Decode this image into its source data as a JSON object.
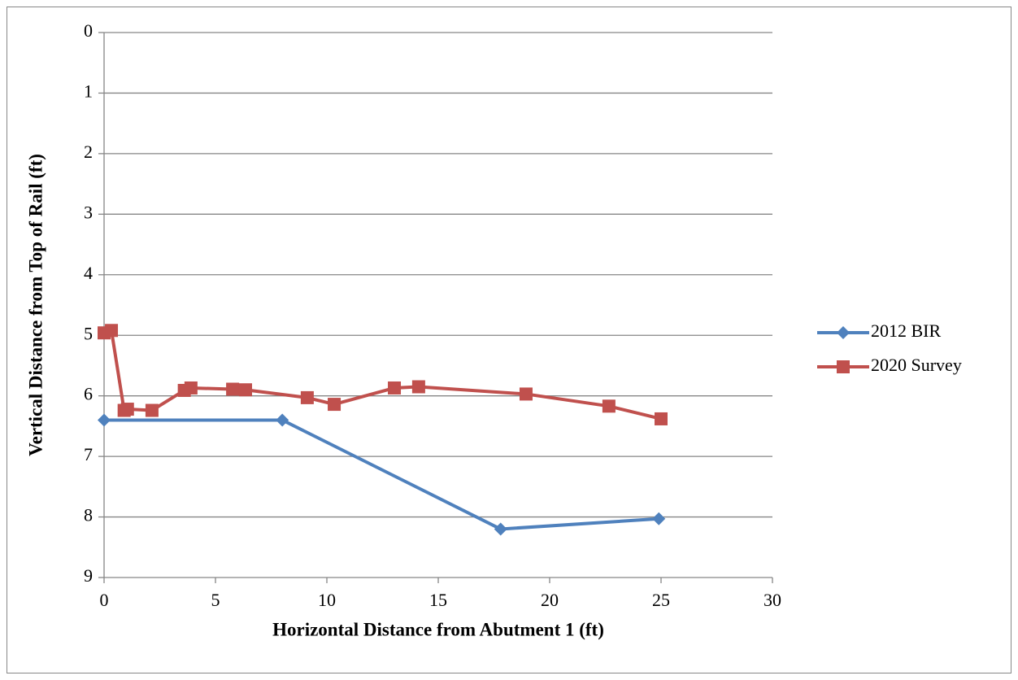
{
  "chart_data": {
    "type": "line",
    "x_label": "Horizontal Distance from Abutment 1 (ft)",
    "y_label": "Vertical Distance from Top of Rail (ft)",
    "xlim": [
      0,
      30
    ],
    "xticks": [
      0,
      5,
      10,
      15,
      20,
      25,
      30
    ],
    "ylim": [
      0,
      9
    ],
    "yticks": [
      0,
      1,
      2,
      3,
      4,
      5,
      6,
      7,
      8,
      9
    ],
    "y_reversed": true,
    "grid": true,
    "legend": "right",
    "series": [
      {
        "name": "2012 BIR",
        "color": "#4f81bd",
        "marker": "diamond",
        "x": [
          0,
          8,
          17.8,
          24.9
        ],
        "values": [
          6.4,
          6.4,
          8.2,
          8.03
        ]
      },
      {
        "name": "2020 Survey",
        "color": "#c0504d",
        "marker": "square",
        "x": [
          0,
          0.33,
          0.9,
          1.05,
          2.15,
          3.6,
          3.9,
          5.77,
          6.35,
          9.12,
          10.33,
          13.03,
          14.12,
          18.94,
          22.66,
          25.0
        ],
        "values": [
          4.96,
          4.92,
          6.24,
          6.22,
          6.24,
          5.91,
          5.87,
          5.89,
          5.9,
          6.03,
          6.14,
          5.87,
          5.85,
          5.97,
          6.17,
          6.38
        ]
      }
    ]
  }
}
